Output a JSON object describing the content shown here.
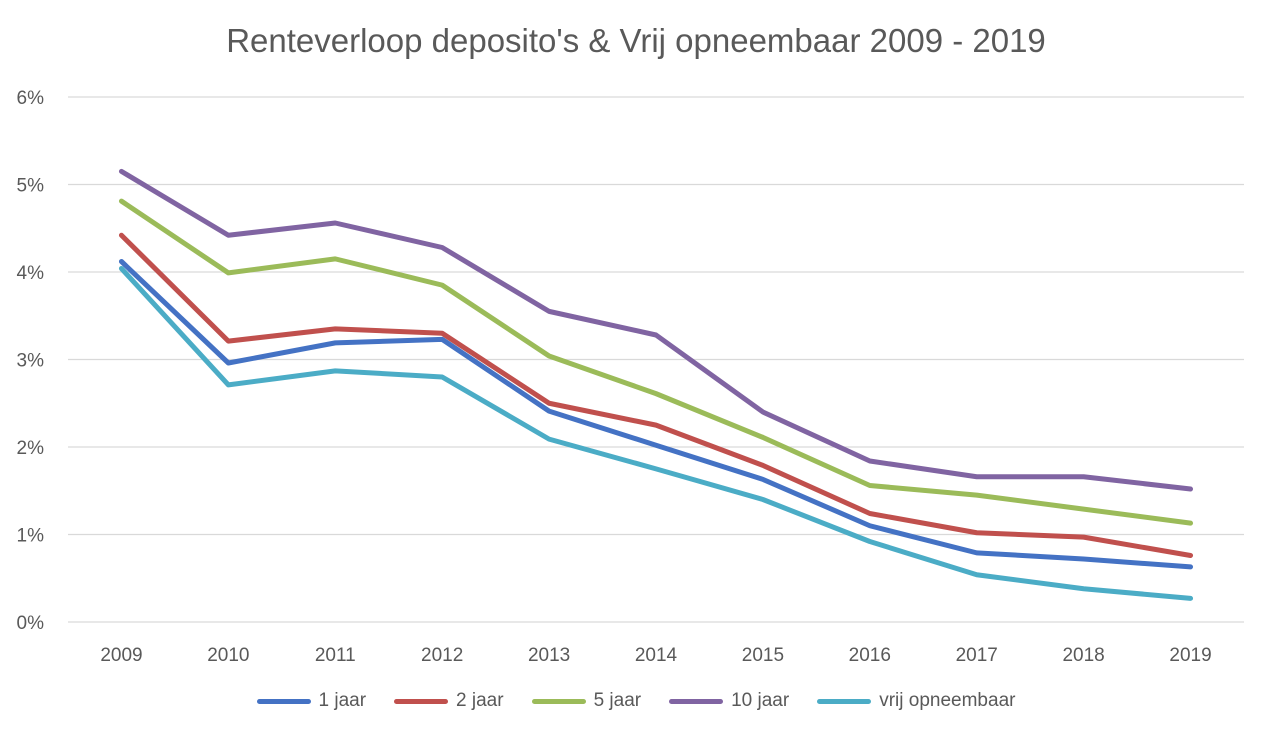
{
  "chart_data": {
    "type": "line",
    "title": "Renteverloop deposito's & Vrij opneembaar 2009 - 2019",
    "xlabel": "",
    "ylabel": "",
    "categories": [
      "2009",
      "2010",
      "2011",
      "2012",
      "2013",
      "2014",
      "2015",
      "2016",
      "2017",
      "2018",
      "2019"
    ],
    "ylim": [
      0,
      6
    ],
    "yticks": [
      "0%",
      "1%",
      "2%",
      "3%",
      "4%",
      "5%",
      "6%"
    ],
    "grid": true,
    "legend_position": "bottom",
    "series": [
      {
        "name": "1 jaar",
        "color": "#4472C4",
        "values": [
          4.12,
          2.96,
          3.19,
          3.23,
          2.41,
          2.02,
          1.63,
          1.1,
          0.79,
          0.72,
          0.63
        ]
      },
      {
        "name": "2 jaar",
        "color": "#C0504D",
        "values": [
          4.42,
          3.21,
          3.35,
          3.3,
          2.5,
          2.25,
          1.79,
          1.24,
          1.02,
          0.97,
          0.76
        ]
      },
      {
        "name": "5 jaar",
        "color": "#9BBB59",
        "values": [
          4.81,
          3.99,
          4.15,
          3.85,
          3.04,
          2.61,
          2.11,
          1.56,
          1.45,
          1.29,
          1.13
        ]
      },
      {
        "name": "10 jaar",
        "color": "#8064A2",
        "values": [
          5.15,
          4.42,
          4.56,
          4.28,
          3.55,
          3.28,
          2.4,
          1.84,
          1.66,
          1.66,
          1.52
        ]
      },
      {
        "name": "vrij opneembaar",
        "color": "#4BACC6",
        "values": [
          4.04,
          2.71,
          2.87,
          2.8,
          2.09,
          1.75,
          1.4,
          0.92,
          0.54,
          0.38,
          0.27
        ]
      }
    ]
  }
}
